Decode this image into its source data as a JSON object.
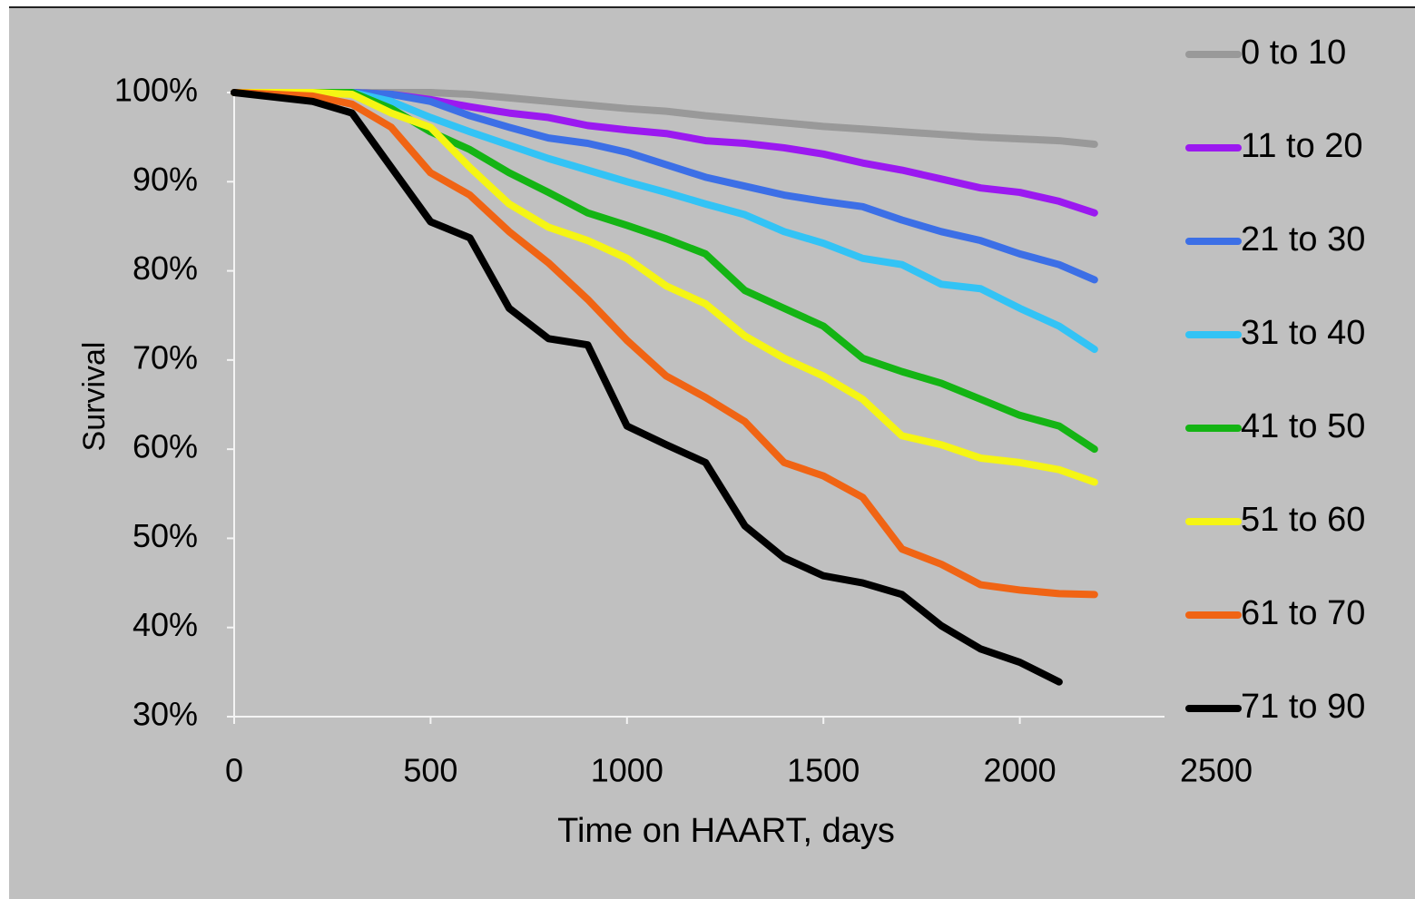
{
  "chart_data": {
    "type": "line",
    "x_label": "Time on HAART, days",
    "y_label": "Survival",
    "x": [
      0,
      200,
      300,
      400,
      500,
      600,
      700,
      800,
      900,
      1000,
      1100,
      1200,
      1300,
      1400,
      1500,
      1600,
      1700,
      1800,
      1900,
      2000,
      2100,
      2190
    ],
    "xlim": [
      0,
      2500
    ],
    "xticks": [
      0,
      500,
      1000,
      1500,
      2000,
      2500
    ],
    "ylim": [
      30,
      100
    ],
    "yticks": [
      {
        "value": 30,
        "label": "30%"
      },
      {
        "value": 40,
        "label": "40%"
      },
      {
        "value": 50,
        "label": "50%"
      },
      {
        "value": 60,
        "label": "60%"
      },
      {
        "value": 70,
        "label": "70%"
      },
      {
        "value": 80,
        "label": "80%"
      },
      {
        "value": 90,
        "label": "90%"
      },
      {
        "value": 100,
        "label": "100%"
      }
    ],
    "series": [
      {
        "name": "0 to 10",
        "color": "#999999",
        "values": [
          100,
          100,
          100,
          100,
          100,
          99.8,
          99.4,
          99.0,
          98.6,
          98.2,
          97.9,
          97.4,
          97.0,
          96.6,
          96.2,
          95.9,
          95.6,
          95.3,
          95.0,
          94.8,
          94.6,
          94.2
        ]
      },
      {
        "name": "11 to 20",
        "color": "#9b19f0",
        "values": [
          100,
          100,
          100,
          99.8,
          99.2,
          98.4,
          97.7,
          97.2,
          96.3,
          95.8,
          95.4,
          94.6,
          94.3,
          93.8,
          93.1,
          92.1,
          91.3,
          90.3,
          89.3,
          88.8,
          87.8,
          86.5
        ]
      },
      {
        "name": "21 to 30",
        "color": "#3c6fe6",
        "values": [
          100,
          100,
          100,
          99.8,
          99.0,
          97.4,
          96.1,
          94.9,
          94.3,
          93.3,
          91.9,
          90.5,
          89.5,
          88.5,
          87.8,
          87.2,
          85.7,
          84.4,
          83.4,
          81.9,
          80.7,
          79.0
        ]
      },
      {
        "name": "31 to 40",
        "color": "#33c3f5",
        "values": [
          100,
          100,
          100,
          99.0,
          97.2,
          95.6,
          94.1,
          92.6,
          91.3,
          90.0,
          88.8,
          87.5,
          86.3,
          84.4,
          83.1,
          81.4,
          80.7,
          78.5,
          78.0,
          75.8,
          73.8,
          71.2
        ]
      },
      {
        "name": "41 to 50",
        "color": "#14b414",
        "values": [
          100,
          100,
          100,
          98.2,
          95.6,
          93.6,
          91.0,
          88.8,
          86.5,
          85.1,
          83.6,
          81.9,
          77.8,
          75.8,
          73.8,
          70.2,
          68.7,
          67.4,
          65.6,
          63.8,
          62.6,
          60.0
        ]
      },
      {
        "name": "51 to 60",
        "color": "#f5f514",
        "values": [
          100,
          100,
          99.8,
          97.7,
          96.1,
          91.6,
          87.5,
          84.9,
          83.4,
          81.4,
          78.3,
          76.3,
          72.7,
          70.2,
          68.2,
          65.6,
          61.5,
          60.5,
          59.0,
          58.5,
          57.7,
          56.3
        ]
      },
      {
        "name": "61 to 70",
        "color": "#f06414",
        "values": [
          100,
          99.6,
          98.7,
          96.1,
          91.0,
          88.5,
          84.4,
          80.9,
          76.8,
          72.2,
          68.2,
          65.8,
          63.1,
          58.5,
          57.0,
          54.6,
          48.8,
          47.1,
          44.8,
          44.2,
          43.8,
          43.7
        ]
      },
      {
        "name": "71 to 90",
        "color": "#000000",
        "values": [
          100,
          99.0,
          97.7,
          91.6,
          85.5,
          83.7,
          75.8,
          72.4,
          71.7,
          62.6,
          60.5,
          58.5,
          51.4,
          47.8,
          45.8,
          45.0,
          43.7,
          40.2,
          37.6,
          36.1,
          33.9,
          null
        ]
      }
    ]
  }
}
